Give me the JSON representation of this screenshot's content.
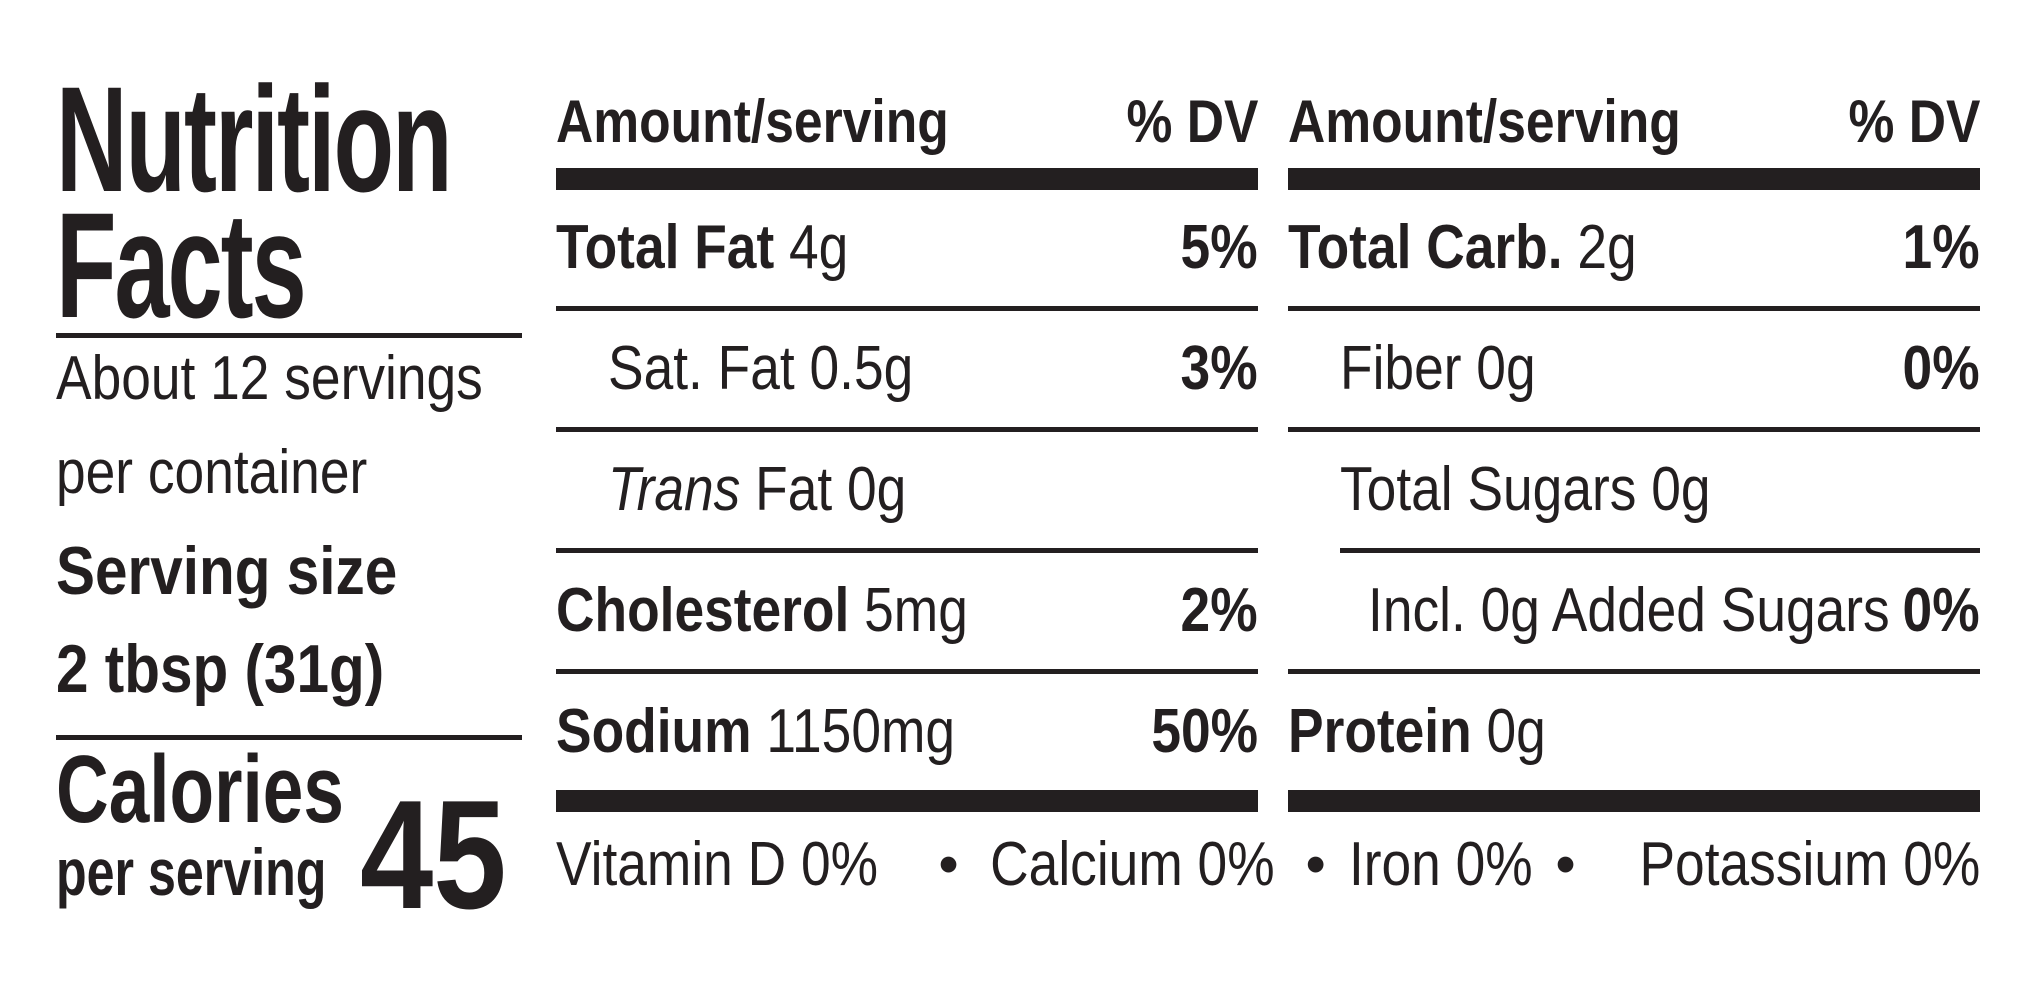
{
  "colors": {
    "ink": "#231f20",
    "background": "#ffffff"
  },
  "label_header": {
    "title_line1": "Nutrition",
    "title_line2": "Facts",
    "servings_per_container_line1": "About 12 servings",
    "servings_per_container_line2": "per container",
    "serving_size_label": "Serving size",
    "serving_size_value": "2 tbsp (31g)",
    "calories_label": "Calories",
    "calories_unit": "per serving",
    "calories_value": "45"
  },
  "nutrient_table": {
    "columns": [
      {
        "header_amount": "Amount/serving",
        "header_dv": "% DV",
        "rows": [
          {
            "bold": "Total Fat",
            "italic": "",
            "regular": " 4g",
            "dv": "5%",
            "indent": 0
          },
          {
            "bold": "",
            "italic": "",
            "regular": "Sat. Fat 0.5g",
            "dv": "3%",
            "indent": 1
          },
          {
            "bold": "",
            "italic": "Trans",
            "regular": " Fat 0g",
            "dv": "",
            "indent": 1
          },
          {
            "bold": "Cholesterol",
            "italic": "",
            "regular": " 5mg",
            "dv": "2%",
            "indent": 0
          },
          {
            "bold": "Sodium",
            "italic": "",
            "regular": " 1150mg",
            "dv": "50%",
            "indent": 0
          }
        ]
      },
      {
        "header_amount": "Amount/serving",
        "header_dv": "% DV",
        "rows": [
          {
            "bold": "Total Carb.",
            "italic": "",
            "regular": " 2g",
            "dv": "1%",
            "indent": 0
          },
          {
            "bold": "",
            "italic": "",
            "regular": "Fiber 0g",
            "dv": "0%",
            "indent": 1
          },
          {
            "bold": "",
            "italic": "",
            "regular": "Total Sugars 0g",
            "dv": "",
            "indent": 1
          },
          {
            "bold": "",
            "italic": "",
            "regular": "Incl. 0g Added Sugars",
            "dv": "0%",
            "indent": 2
          },
          {
            "bold": "Protein",
            "italic": "",
            "regular": " 0g",
            "dv": "",
            "indent": 0
          }
        ]
      }
    ]
  },
  "micronutrients": {
    "bullet": "•",
    "items": [
      "Vitamin D 0%",
      "Calcium 0%",
      "Iron 0%",
      "Potassium 0%"
    ]
  }
}
